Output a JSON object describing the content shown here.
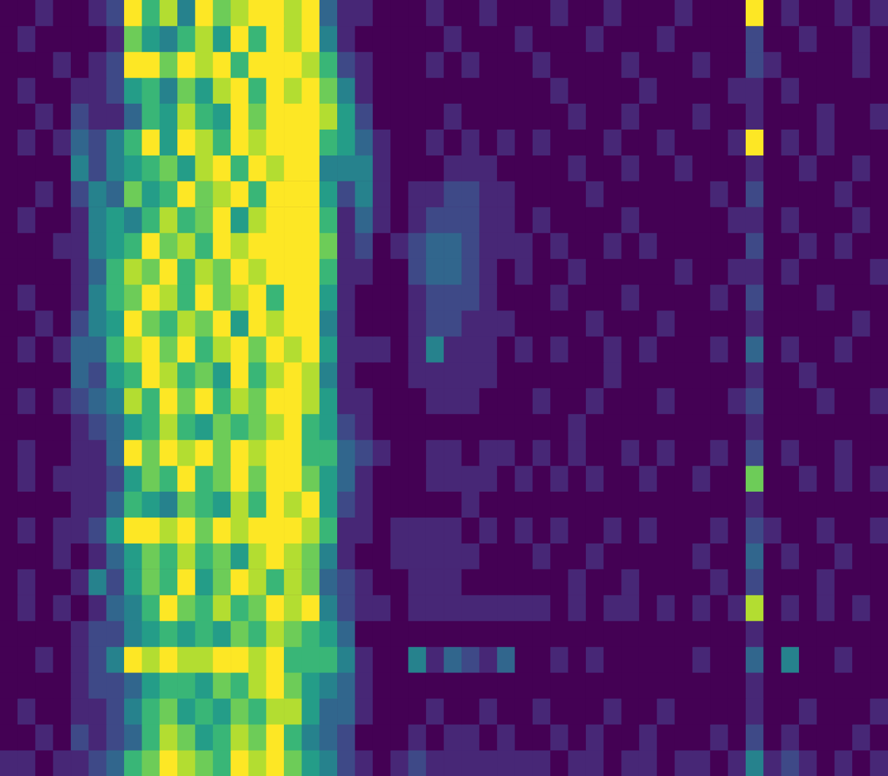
{
  "chart_data": {
    "type": "heatmap",
    "tick_labels": false,
    "zlim": [
      0,
      9
    ],
    "cells": [
      [
        0,
        0,
        1,
        0,
        0,
        1,
        2,
        9,
        6,
        8,
        4,
        9,
        7,
        8,
        9,
        9,
        8,
        9,
        3,
        1,
        1,
        0,
        0,
        0,
        1,
        0,
        0,
        1,
        0,
        0,
        0,
        1,
        0,
        0,
        1,
        0,
        0,
        0,
        1,
        0,
        0,
        0,
        9,
        0,
        1,
        0,
        0,
        1,
        0,
        1
      ],
      [
        0,
        1,
        0,
        0,
        0,
        0,
        1,
        7,
        5,
        4,
        6,
        8,
        5,
        9,
        6,
        9,
        8,
        9,
        4,
        1,
        0,
        0,
        0,
        0,
        0,
        1,
        0,
        0,
        0,
        1,
        0,
        0,
        0,
        1,
        0,
        0,
        0,
        1,
        0,
        0,
        0,
        0,
        2,
        0,
        0,
        1,
        0,
        0,
        1,
        0
      ],
      [
        0,
        0,
        0,
        1,
        0,
        1,
        2,
        9,
        9,
        7,
        9,
        8,
        9,
        6,
        9,
        9,
        9,
        8,
        6,
        2,
        1,
        0,
        0,
        0,
        1,
        0,
        1,
        0,
        0,
        0,
        1,
        0,
        0,
        0,
        0,
        1,
        0,
        0,
        0,
        1,
        0,
        0,
        2,
        1,
        0,
        0,
        0,
        0,
        1,
        0
      ],
      [
        0,
        1,
        0,
        0,
        1,
        1,
        2,
        5,
        6,
        4,
        7,
        5,
        8,
        9,
        6,
        9,
        8,
        9,
        7,
        4,
        1,
        0,
        0,
        0,
        0,
        0,
        0,
        0,
        0,
        0,
        0,
        1,
        0,
        0,
        0,
        0,
        1,
        0,
        0,
        0,
        0,
        1,
        1,
        0,
        1,
        0,
        0,
        0,
        0,
        0
      ],
      [
        0,
        0,
        1,
        0,
        2,
        1,
        1,
        3,
        6,
        5,
        8,
        6,
        5,
        9,
        7,
        9,
        9,
        9,
        8,
        5,
        2,
        0,
        0,
        0,
        0,
        1,
        0,
        0,
        0,
        0,
        0,
        0,
        1,
        0,
        0,
        1,
        0,
        0,
        0,
        1,
        0,
        0,
        1,
        0,
        0,
        0,
        1,
        0,
        0,
        1
      ],
      [
        0,
        1,
        0,
        1,
        3,
        2,
        4,
        6,
        9,
        5,
        9,
        8,
        6,
        9,
        8,
        9,
        9,
        9,
        6,
        5,
        3,
        1,
        0,
        0,
        1,
        0,
        1,
        0,
        1,
        0,
        1,
        0,
        0,
        0,
        1,
        0,
        0,
        1,
        0,
        0,
        0,
        1,
        9,
        0,
        1,
        0,
        1,
        0,
        0,
        0
      ],
      [
        0,
        0,
        0,
        0,
        4,
        2,
        4,
        5,
        6,
        7,
        5,
        8,
        9,
        6,
        9,
        8,
        9,
        9,
        4,
        4,
        4,
        1,
        0,
        0,
        0,
        1,
        1,
        1,
        0,
        0,
        0,
        0,
        1,
        0,
        0,
        1,
        0,
        0,
        1,
        0,
        0,
        0,
        1,
        0,
        0,
        1,
        0,
        0,
        1,
        0
      ],
      [
        0,
        0,
        1,
        0,
        2,
        4,
        3,
        7,
        5,
        6,
        9,
        7,
        8,
        9,
        6,
        9,
        9,
        9,
        5,
        2,
        4,
        1,
        0,
        1,
        1,
        2,
        2,
        1,
        1,
        0,
        0,
        0,
        0,
        1,
        0,
        0,
        0,
        0,
        0,
        0,
        1,
        0,
        2,
        0,
        0,
        0,
        0,
        1,
        0,
        0
      ],
      [
        0,
        1,
        0,
        0,
        1,
        4,
        5,
        4,
        6,
        8,
        6,
        7,
        9,
        5,
        8,
        9,
        9,
        9,
        6,
        1,
        3,
        1,
        0,
        1,
        2,
        2,
        2,
        1,
        1,
        0,
        1,
        0,
        0,
        0,
        0,
        1,
        0,
        0,
        0,
        0,
        0,
        1,
        1,
        0,
        1,
        0,
        0,
        0,
        1,
        0
      ],
      [
        0,
        0,
        0,
        1,
        1,
        4,
        5,
        6,
        9,
        7,
        8,
        6,
        9,
        8,
        9,
        9,
        9,
        9,
        7,
        1,
        2,
        0,
        1,
        2,
        3,
        3,
        2,
        1,
        1,
        1,
        0,
        1,
        0,
        0,
        1,
        0,
        1,
        0,
        0,
        0,
        0,
        0,
        2,
        0,
        0,
        1,
        0,
        1,
        0,
        0
      ],
      [
        0,
        0,
        0,
        0,
        1,
        3,
        6,
        8,
        7,
        9,
        6,
        8,
        7,
        9,
        8,
        9,
        9,
        9,
        6,
        1,
        1,
        0,
        0,
        2,
        3,
        3,
        2,
        1,
        0,
        1,
        0,
        0,
        1,
        0,
        0,
        0,
        0,
        0,
        1,
        0,
        0,
        1,
        1,
        0,
        1,
        0,
        0,
        0,
        0,
        1
      ],
      [
        0,
        1,
        0,
        0,
        1,
        4,
        6,
        7,
        9,
        8,
        6,
        9,
        7,
        8,
        9,
        6,
        9,
        9,
        5,
        1,
        0,
        0,
        0,
        1,
        2,
        2,
        2,
        1,
        0,
        0,
        0,
        1,
        0,
        0,
        0,
        1,
        0,
        0,
        0,
        0,
        1,
        0,
        2,
        0,
        0,
        0,
        1,
        0,
        0,
        0
      ],
      [
        0,
        0,
        1,
        0,
        2,
        4,
        5,
        9,
        7,
        6,
        8,
        7,
        9,
        5,
        9,
        8,
        9,
        9,
        4,
        1,
        0,
        0,
        0,
        1,
        2,
        2,
        1,
        1,
        1,
        0,
        0,
        0,
        0,
        1,
        0,
        0,
        0,
        1,
        0,
        0,
        0,
        0,
        1,
        0,
        0,
        0,
        0,
        0,
        1,
        0
      ],
      [
        0,
        1,
        0,
        1,
        3,
        3,
        6,
        8,
        9,
        7,
        9,
        6,
        8,
        9,
        7,
        9,
        8,
        9,
        5,
        1,
        1,
        1,
        0,
        1,
        4,
        1,
        1,
        1,
        0,
        1,
        0,
        1,
        0,
        0,
        1,
        0,
        1,
        0,
        0,
        0,
        1,
        0,
        3,
        0,
        1,
        0,
        0,
        1,
        0,
        0
      ],
      [
        0,
        0,
        0,
        0,
        3,
        2,
        5,
        6,
        9,
        8,
        6,
        7,
        5,
        9,
        6,
        8,
        9,
        8,
        4,
        1,
        0,
        0,
        0,
        1,
        1,
        1,
        1,
        1,
        0,
        0,
        0,
        0,
        0,
        0,
        1,
        0,
        0,
        0,
        0,
        0,
        0,
        0,
        1,
        0,
        0,
        1,
        0,
        0,
        0,
        0
      ],
      [
        0,
        1,
        0,
        1,
        2,
        3,
        4,
        8,
        6,
        9,
        7,
        9,
        6,
        8,
        7,
        9,
        9,
        8,
        5,
        1,
        1,
        0,
        0,
        0,
        1,
        1,
        1,
        0,
        0,
        0,
        1,
        0,
        0,
        1,
        0,
        0,
        0,
        1,
        0,
        0,
        0,
        1,
        2,
        0,
        0,
        0,
        1,
        0,
        0,
        1
      ],
      [
        0,
        0,
        0,
        0,
        1,
        2,
        3,
        5,
        6,
        8,
        6,
        5,
        7,
        6,
        7,
        8,
        9,
        6,
        5,
        2,
        1,
        0,
        0,
        0,
        0,
        0,
        0,
        0,
        0,
        0,
        0,
        0,
        1,
        0,
        0,
        0,
        0,
        0,
        0,
        0,
        0,
        0,
        1,
        0,
        0,
        0,
        0,
        0,
        0,
        0
      ],
      [
        0,
        1,
        0,
        0,
        1,
        1,
        3,
        9,
        7,
        9,
        8,
        9,
        7,
        9,
        8,
        9,
        9,
        6,
        6,
        3,
        2,
        1,
        0,
        0,
        1,
        1,
        0,
        1,
        1,
        0,
        1,
        0,
        1,
        0,
        0,
        1,
        0,
        1,
        0,
        0,
        1,
        0,
        2,
        0,
        1,
        0,
        0,
        1,
        0,
        0
      ],
      [
        0,
        1,
        0,
        1,
        1,
        1,
        2,
        5,
        7,
        6,
        9,
        6,
        7,
        9,
        7,
        9,
        9,
        7,
        5,
        3,
        1,
        0,
        0,
        0,
        1,
        1,
        1,
        1,
        0,
        1,
        0,
        1,
        0,
        1,
        0,
        0,
        1,
        0,
        0,
        1,
        0,
        0,
        7,
        0,
        0,
        1,
        0,
        1,
        0,
        1
      ],
      [
        0,
        0,
        0,
        0,
        1,
        1,
        3,
        6,
        5,
        4,
        7,
        6,
        5,
        8,
        6,
        9,
        8,
        9,
        5,
        2,
        1,
        0,
        0,
        0,
        0,
        0,
        1,
        0,
        0,
        0,
        0,
        0,
        0,
        0,
        0,
        0,
        0,
        0,
        0,
        0,
        0,
        0,
        1,
        0,
        0,
        0,
        0,
        0,
        0,
        0
      ],
      [
        0,
        1,
        0,
        1,
        1,
        2,
        5,
        9,
        9,
        8,
        9,
        7,
        9,
        8,
        9,
        9,
        9,
        8,
        6,
        1,
        1,
        0,
        1,
        1,
        1,
        1,
        0,
        1,
        0,
        1,
        0,
        1,
        0,
        0,
        1,
        0,
        1,
        0,
        0,
        0,
        1,
        0,
        2,
        1,
        0,
        0,
        1,
        0,
        0,
        1
      ],
      [
        0,
        0,
        0,
        1,
        0,
        1,
        3,
        5,
        7,
        6,
        8,
        6,
        7,
        5,
        8,
        9,
        8,
        7,
        4,
        1,
        0,
        0,
        1,
        1,
        1,
        1,
        1,
        0,
        0,
        0,
        1,
        0,
        0,
        1,
        0,
        0,
        0,
        0,
        0,
        1,
        0,
        0,
        3,
        0,
        1,
        0,
        0,
        1,
        0,
        0
      ],
      [
        0,
        1,
        0,
        0,
        1,
        4,
        2,
        5,
        7,
        6,
        9,
        5,
        7,
        9,
        8,
        6,
        8,
        7,
        3,
        2,
        1,
        0,
        0,
        1,
        1,
        1,
        0,
        0,
        0,
        0,
        0,
        0,
        1,
        0,
        0,
        1,
        0,
        0,
        0,
        0,
        1,
        0,
        2,
        0,
        0,
        0,
        1,
        0,
        0,
        0
      ],
      [
        0,
        1,
        0,
        1,
        0,
        1,
        3,
        4,
        6,
        9,
        7,
        6,
        8,
        6,
        7,
        9,
        8,
        9,
        4,
        2,
        1,
        1,
        0,
        1,
        1,
        1,
        1,
        1,
        1,
        1,
        1,
        0,
        1,
        0,
        1,
        1,
        0,
        1,
        0,
        1,
        0,
        1,
        8,
        0,
        1,
        0,
        1,
        0,
        1,
        0
      ],
      [
        0,
        0,
        0,
        0,
        1,
        2,
        2,
        4,
        5,
        6,
        5,
        6,
        5,
        7,
        6,
        8,
        7,
        6,
        5,
        3,
        0,
        0,
        0,
        0,
        0,
        0,
        0,
        0,
        0,
        0,
        0,
        0,
        0,
        0,
        0,
        0,
        0,
        0,
        0,
        0,
        0,
        0,
        1,
        0,
        0,
        0,
        0,
        0,
        0,
        0
      ],
      [
        0,
        0,
        1,
        0,
        1,
        2,
        4,
        9,
        8,
        9,
        8,
        8,
        9,
        9,
        8,
        9,
        6,
        6,
        6,
        4,
        1,
        0,
        0,
        4,
        1,
        3,
        2,
        1,
        3,
        0,
        0,
        1,
        0,
        1,
        0,
        0,
        0,
        0,
        0,
        1,
        0,
        0,
        3,
        0,
        4,
        0,
        0,
        1,
        0,
        0
      ],
      [
        0,
        0,
        0,
        0,
        1,
        2,
        2,
        3,
        5,
        6,
        6,
        5,
        7,
        6,
        8,
        9,
        7,
        5,
        4,
        3,
        1,
        0,
        0,
        0,
        0,
        0,
        0,
        0,
        0,
        0,
        0,
        0,
        0,
        0,
        0,
        0,
        0,
        0,
        0,
        0,
        0,
        0,
        1,
        0,
        0,
        0,
        0,
        0,
        0,
        0
      ],
      [
        0,
        1,
        0,
        0,
        1,
        1,
        2,
        4,
        6,
        7,
        5,
        6,
        5,
        7,
        6,
        8,
        8,
        5,
        3,
        3,
        1,
        0,
        0,
        0,
        1,
        0,
        0,
        1,
        0,
        0,
        1,
        0,
        0,
        0,
        1,
        0,
        0,
        1,
        0,
        0,
        0,
        0,
        1,
        0,
        0,
        1,
        0,
        0,
        0,
        1
      ],
      [
        0,
        0,
        1,
        0,
        2,
        1,
        2,
        3,
        6,
        8,
        7,
        5,
        6,
        8,
        7,
        9,
        6,
        4,
        3,
        2,
        0,
        0,
        0,
        1,
        0,
        1,
        1,
        0,
        1,
        0,
        0,
        1,
        0,
        1,
        0,
        0,
        1,
        0,
        0,
        0,
        1,
        0,
        2,
        0,
        1,
        0,
        0,
        0,
        1,
        0
      ],
      [
        1,
        1,
        0,
        1,
        1,
        2,
        3,
        6,
        7,
        9,
        8,
        7,
        6,
        9,
        8,
        9,
        7,
        5,
        4,
        2,
        1,
        0,
        1,
        2,
        1,
        1,
        1,
        1,
        1,
        1,
        1,
        0,
        1,
        1,
        0,
        1,
        1,
        0,
        1,
        1,
        0,
        1,
        4,
        1,
        2,
        1,
        0,
        1,
        0,
        1
      ]
    ]
  }
}
